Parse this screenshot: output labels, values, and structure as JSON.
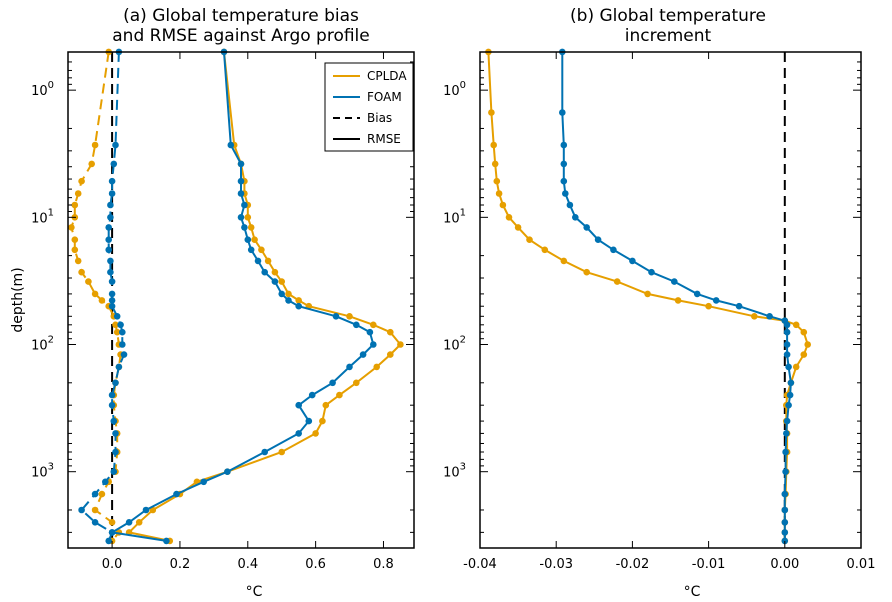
{
  "colors": {
    "cplda": "#E69F00",
    "foam": "#0072B2",
    "ref": "#000000"
  },
  "chart_data": [
    {
      "type": "line",
      "title_line1": "(a) Global temperature bias",
      "title_line2": "and RMSE against Argo profile",
      "xlabel": "°C",
      "ylabel": "depth(m)",
      "xlim": [
        -0.13,
        0.89
      ],
      "ylim_log10": [
        -0.3,
        3.6
      ],
      "yscale": "log",
      "yinvert": true,
      "xticks": [
        0.0,
        0.2,
        0.4,
        0.6,
        0.8
      ],
      "xtick_labels": [
        "0.0",
        "0.2",
        "0.4",
        "0.6",
        "0.8"
      ],
      "ytick_exponents": [
        "0",
        "1",
        "2",
        "3"
      ],
      "legend": {
        "position": "top-right",
        "entries": [
          "CPLDA",
          "FOAM",
          "Bias",
          "RMSE"
        ]
      },
      "series": [
        {
          "name": "CPLDA",
          "metric": "Bias",
          "color": "cplda",
          "points": [
            [
              -0.01,
              0.5
            ],
            [
              -0.05,
              2.7
            ],
            [
              -0.06,
              3.8
            ],
            [
              -0.09,
              5.2
            ],
            [
              -0.1,
              6.5
            ],
            [
              -0.11,
              8
            ],
            [
              -0.11,
              10
            ],
            [
              -0.12,
              12
            ],
            [
              -0.11,
              15
            ],
            [
              -0.11,
              18
            ],
            [
              -0.1,
              22
            ],
            [
              -0.09,
              27
            ],
            [
              -0.07,
              32
            ],
            [
              -0.05,
              40
            ],
            [
              -0.03,
              45
            ],
            [
              -0.01,
              50
            ],
            [
              0.005,
              60
            ],
            [
              0.01,
              70
            ],
            [
              0.015,
              80
            ],
            [
              0.02,
              100
            ],
            [
              0.025,
              120
            ],
            [
              0.02,
              150
            ],
            [
              0.01,
              200
            ],
            [
              0.005,
              250
            ],
            [
              0.005,
              300
            ],
            [
              0.01,
              400
            ],
            [
              0.015,
              500
            ],
            [
              0.015,
              700
            ],
            [
              0.01,
              1000
            ],
            [
              -0.01,
              1200
            ],
            [
              -0.03,
              1500
            ],
            [
              -0.05,
              2000
            ],
            [
              0.0,
              2500
            ],
            [
              0.02,
              3000
            ],
            [
              0.0,
              3500
            ]
          ]
        },
        {
          "name": "FOAM",
          "metric": "Bias",
          "color": "foam",
          "points": [
            [
              0.02,
              0.5
            ],
            [
              0.01,
              2.7
            ],
            [
              0.005,
              3.8
            ],
            [
              0.0,
              5.2
            ],
            [
              0.0,
              6.5
            ],
            [
              -0.005,
              8
            ],
            [
              -0.005,
              10
            ],
            [
              -0.01,
              12
            ],
            [
              -0.01,
              15
            ],
            [
              -0.01,
              18
            ],
            [
              -0.005,
              22
            ],
            [
              -0.005,
              27
            ],
            [
              0.0,
              32
            ],
            [
              0.0,
              40
            ],
            [
              0.0,
              45
            ],
            [
              0.0,
              50
            ],
            [
              0.015,
              60
            ],
            [
              0.025,
              70
            ],
            [
              0.03,
              80
            ],
            [
              0.03,
              100
            ],
            [
              0.035,
              120
            ],
            [
              0.02,
              150
            ],
            [
              0.01,
              200
            ],
            [
              0.0,
              250
            ],
            [
              0.0,
              300
            ],
            [
              0.005,
              400
            ],
            [
              0.01,
              500
            ],
            [
              0.01,
              700
            ],
            [
              0.005,
              1000
            ],
            [
              -0.02,
              1200
            ],
            [
              -0.05,
              1500
            ],
            [
              -0.09,
              2000
            ],
            [
              -0.05,
              2500
            ],
            [
              0.0,
              3000
            ],
            [
              -0.01,
              3500
            ]
          ]
        },
        {
          "name": "CPLDA",
          "metric": "RMSE",
          "color": "cplda",
          "points": [
            [
              0.33,
              0.5
            ],
            [
              0.36,
              2.7
            ],
            [
              0.38,
              3.8
            ],
            [
              0.39,
              5.2
            ],
            [
              0.39,
              6.5
            ],
            [
              0.4,
              8
            ],
            [
              0.4,
              10
            ],
            [
              0.41,
              12
            ],
            [
              0.42,
              15
            ],
            [
              0.44,
              18
            ],
            [
              0.46,
              22
            ],
            [
              0.48,
              27
            ],
            [
              0.5,
              32
            ],
            [
              0.52,
              40
            ],
            [
              0.55,
              45
            ],
            [
              0.58,
              50
            ],
            [
              0.7,
              60
            ],
            [
              0.77,
              70
            ],
            [
              0.82,
              80
            ],
            [
              0.85,
              100
            ],
            [
              0.82,
              120
            ],
            [
              0.78,
              150
            ],
            [
              0.72,
              200
            ],
            [
              0.67,
              250
            ],
            [
              0.63,
              300
            ],
            [
              0.62,
              400
            ],
            [
              0.6,
              500
            ],
            [
              0.5,
              700
            ],
            [
              0.34,
              1000
            ],
            [
              0.25,
              1200
            ],
            [
              0.2,
              1500
            ],
            [
              0.12,
              2000
            ],
            [
              0.08,
              2500
            ],
            [
              0.05,
              3000
            ],
            [
              0.17,
              3500
            ]
          ]
        },
        {
          "name": "FOAM",
          "metric": "RMSE",
          "color": "foam",
          "points": [
            [
              0.33,
              0.5
            ],
            [
              0.35,
              2.7
            ],
            [
              0.38,
              3.8
            ],
            [
              0.38,
              5.2
            ],
            [
              0.38,
              6.5
            ],
            [
              0.39,
              8
            ],
            [
              0.38,
              10
            ],
            [
              0.39,
              12
            ],
            [
              0.4,
              15
            ],
            [
              0.41,
              18
            ],
            [
              0.43,
              22
            ],
            [
              0.45,
              27
            ],
            [
              0.48,
              32
            ],
            [
              0.5,
              40
            ],
            [
              0.52,
              45
            ],
            [
              0.55,
              50
            ],
            [
              0.66,
              60
            ],
            [
              0.72,
              70
            ],
            [
              0.76,
              80
            ],
            [
              0.77,
              100
            ],
            [
              0.74,
              120
            ],
            [
              0.7,
              150
            ],
            [
              0.65,
              200
            ],
            [
              0.59,
              250
            ],
            [
              0.55,
              300
            ],
            [
              0.58,
              400
            ],
            [
              0.55,
              500
            ],
            [
              0.45,
              700
            ],
            [
              0.34,
              1000
            ],
            [
              0.27,
              1200
            ],
            [
              0.19,
              1500
            ],
            [
              0.1,
              2000
            ],
            [
              0.05,
              2500
            ],
            [
              0.0,
              3000
            ],
            [
              0.16,
              3500
            ]
          ]
        }
      ]
    },
    {
      "type": "line",
      "title_line1": "(b) Global temperature",
      "title_line2": "increment",
      "xlabel": "°C",
      "ylabel": "",
      "xlim": [
        -0.04,
        0.01
      ],
      "ylim_log10": [
        -0.3,
        3.6
      ],
      "yscale": "log",
      "yinvert": true,
      "xticks": [
        -0.04,
        -0.03,
        -0.02,
        -0.01,
        0.0,
        0.01
      ],
      "xtick_labels": [
        "-0.04",
        "-0.03",
        "-0.02",
        "-0.01",
        "0.00",
        "0.01"
      ],
      "ytick_exponents": [
        "0",
        "1",
        "2",
        "3"
      ],
      "series": [
        {
          "name": "CPLDA",
          "color": "cplda",
          "points": [
            [
              -0.0389,
              0.5
            ],
            [
              -0.0385,
              1.5
            ],
            [
              -0.0382,
              2.7
            ],
            [
              -0.038,
              3.8
            ],
            [
              -0.0378,
              5.2
            ],
            [
              -0.0375,
              6.5
            ],
            [
              -0.037,
              8
            ],
            [
              -0.0362,
              10
            ],
            [
              -0.035,
              12
            ],
            [
              -0.0335,
              15
            ],
            [
              -0.0315,
              18
            ],
            [
              -0.029,
              22
            ],
            [
              -0.026,
              27
            ],
            [
              -0.022,
              32
            ],
            [
              -0.018,
              40
            ],
            [
              -0.014,
              45
            ],
            [
              -0.01,
              50
            ],
            [
              -0.004,
              60
            ],
            [
              0.0,
              65
            ],
            [
              0.0015,
              70
            ],
            [
              0.0025,
              80
            ],
            [
              0.003,
              100
            ],
            [
              0.0025,
              120
            ],
            [
              0.0015,
              150
            ],
            [
              0.0008,
              200
            ],
            [
              0.0003,
              250
            ],
            [
              0.0002,
              300
            ],
            [
              0.0002,
              400
            ],
            [
              0.0003,
              500
            ],
            [
              0.0003,
              700
            ],
            [
              0.0002,
              1000
            ],
            [
              0.0001,
              1500
            ],
            [
              0.0,
              2000
            ],
            [
              0.0,
              2500
            ],
            [
              0.0,
              3000
            ],
            [
              0.0,
              3500
            ]
          ]
        },
        {
          "name": "FOAM",
          "color": "foam",
          "points": [
            [
              -0.0292,
              0.5
            ],
            [
              -0.0292,
              1.5
            ],
            [
              -0.029,
              2.7
            ],
            [
              -0.029,
              3.8
            ],
            [
              -0.029,
              5.2
            ],
            [
              -0.0288,
              6.5
            ],
            [
              -0.0282,
              8
            ],
            [
              -0.0275,
              10
            ],
            [
              -0.026,
              12
            ],
            [
              -0.0245,
              15
            ],
            [
              -0.0225,
              18
            ],
            [
              -0.02,
              22
            ],
            [
              -0.0175,
              27
            ],
            [
              -0.0145,
              32
            ],
            [
              -0.0115,
              40
            ],
            [
              -0.009,
              45
            ],
            [
              -0.006,
              50
            ],
            [
              -0.002,
              60
            ],
            [
              0.0,
              65
            ],
            [
              0.0003,
              70
            ],
            [
              0.0003,
              80
            ],
            [
              0.0003,
              100
            ],
            [
              0.0003,
              120
            ],
            [
              0.0005,
              150
            ],
            [
              0.0008,
              200
            ],
            [
              0.0007,
              250
            ],
            [
              0.0005,
              300
            ],
            [
              0.0003,
              400
            ],
            [
              0.0002,
              500
            ],
            [
              0.0001,
              700
            ],
            [
              0.0001,
              1000
            ],
            [
              0.0,
              1500
            ],
            [
              0.0,
              2000
            ],
            [
              0.0,
              2500
            ],
            [
              0.0,
              3000
            ],
            [
              0.0,
              3500
            ]
          ]
        }
      ]
    }
  ]
}
